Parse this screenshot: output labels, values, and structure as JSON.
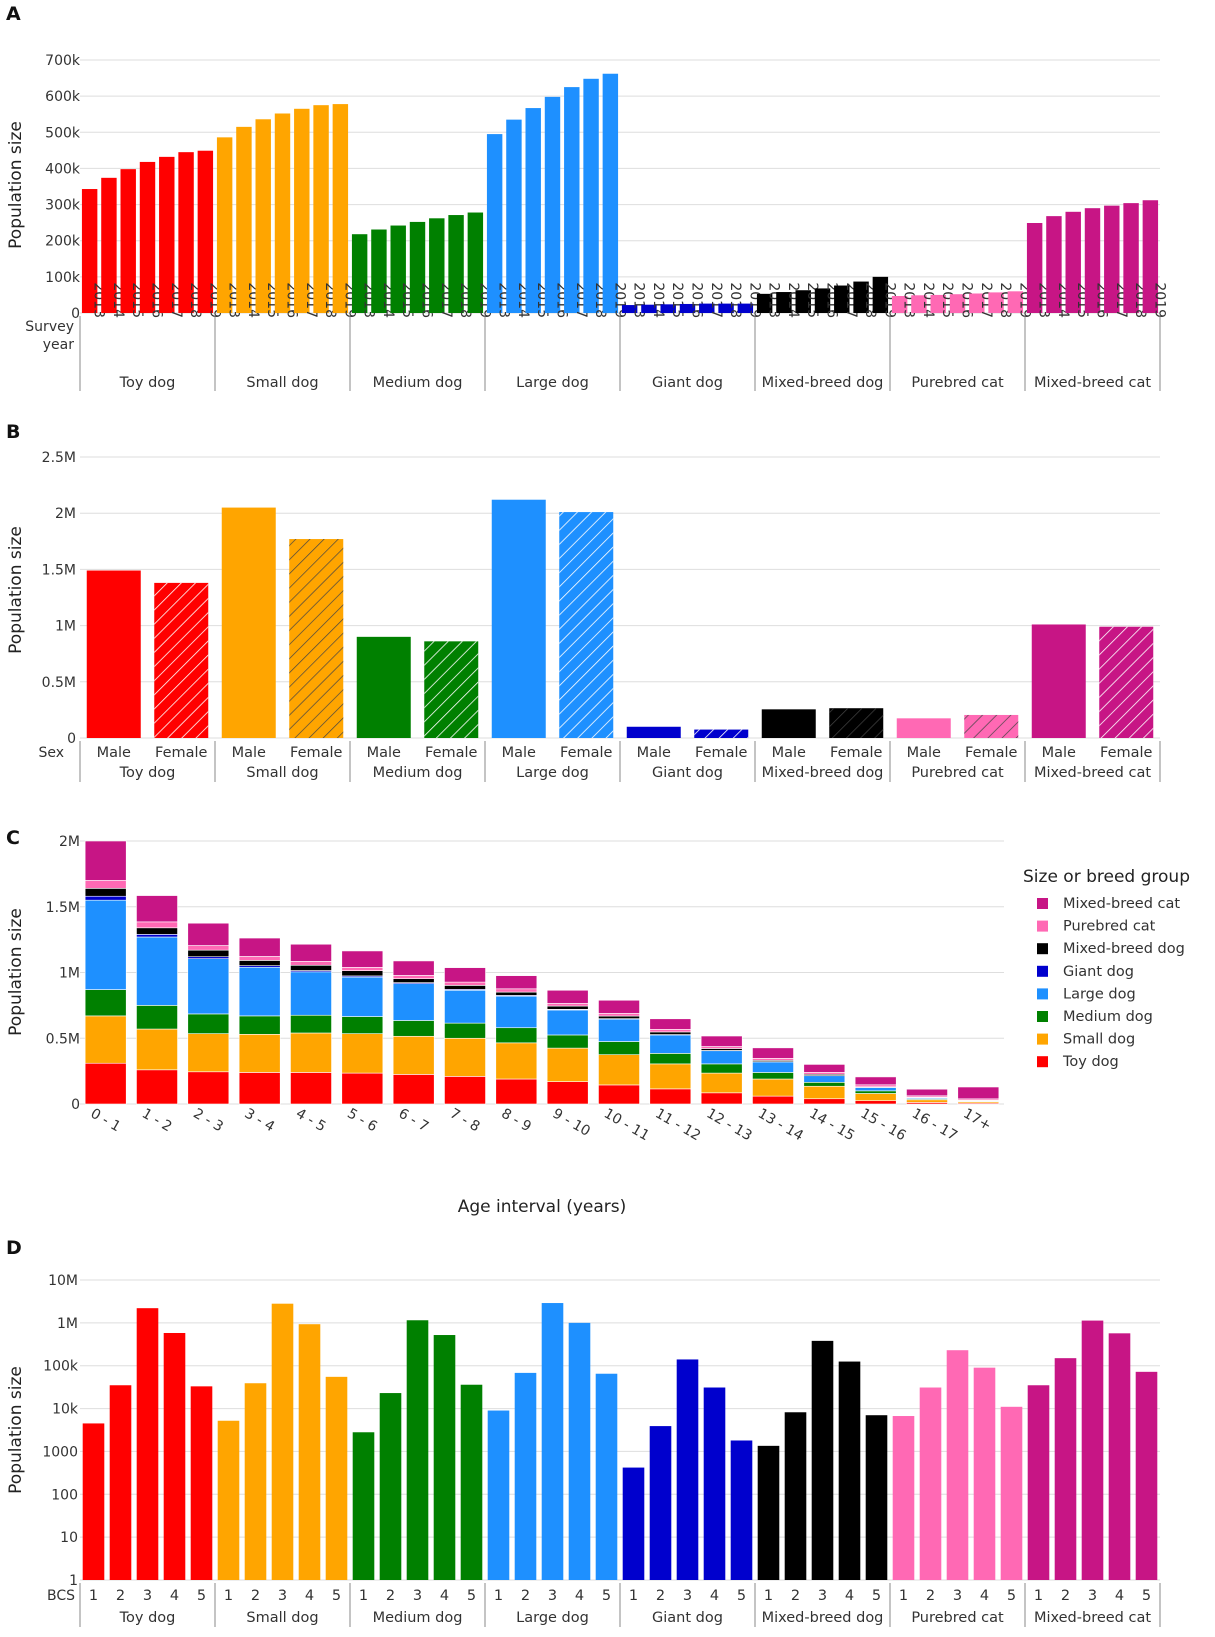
{
  "colors": {
    "Toy dog": "#ff0000",
    "Small dog": "#ffa500",
    "Medium dog": "#008000",
    "Large dog": "#1e90ff",
    "Giant dog": "#0000cd",
    "Mixed-breed dog": "#000000",
    "Purebred cat": "#ff69b4",
    "Mixed-breed cat": "#c71585"
  },
  "chart_data": [
    {
      "panel": "A",
      "type": "bar",
      "ylabel": "Population size",
      "xlabel": "Survey year",
      "yticks": [
        "0",
        "100k",
        "200k",
        "300k",
        "400k",
        "500k",
        "600k",
        "700k"
      ],
      "ylim": [
        0,
        700000
      ],
      "categories": [
        "2013",
        "2014",
        "2015",
        "2016",
        "2017",
        "2018",
        "2019"
      ],
      "series": [
        {
          "name": "Toy dog",
          "values": [
            343000,
            374000,
            398000,
            418000,
            432000,
            445000,
            449000
          ]
        },
        {
          "name": "Small dog",
          "values": [
            486000,
            515000,
            536000,
            552000,
            565000,
            575000,
            578000
          ]
        },
        {
          "name": "Medium dog",
          "values": [
            218000,
            231000,
            242000,
            252000,
            262000,
            271000,
            278000
          ]
        },
        {
          "name": "Large dog",
          "values": [
            495000,
            535000,
            567000,
            598000,
            625000,
            648000,
            662000
          ]
        },
        {
          "name": "Giant dog",
          "values": [
            22000,
            23000,
            24000,
            25000,
            26000,
            26000,
            26000
          ]
        },
        {
          "name": "Mixed-breed dog",
          "values": [
            53000,
            58000,
            63000,
            68000,
            76000,
            87000,
            100000
          ]
        },
        {
          "name": "Purebred cat",
          "values": [
            47000,
            49000,
            50000,
            52000,
            54000,
            57000,
            60000
          ]
        },
        {
          "name": "Mixed-breed cat",
          "values": [
            249000,
            268000,
            280000,
            290000,
            297000,
            304000,
            312000
          ]
        }
      ]
    },
    {
      "panel": "B",
      "type": "bar",
      "ylabel": "Population size",
      "xlabel": "Sex",
      "yticks": [
        "0",
        "0.5M",
        "1M",
        "1.5M",
        "2M",
        "2.5M"
      ],
      "ylim": [
        0,
        2500000
      ],
      "categories": [
        "Male",
        "Female"
      ],
      "female_pattern": "hatched",
      "series": [
        {
          "name": "Toy dog",
          "values": [
            1490000,
            1380000
          ]
        },
        {
          "name": "Small dog",
          "values": [
            2050000,
            1770000
          ]
        },
        {
          "name": "Medium dog",
          "values": [
            900000,
            860000
          ]
        },
        {
          "name": "Large dog",
          "values": [
            2120000,
            2010000
          ]
        },
        {
          "name": "Giant dog",
          "values": [
            100000,
            75000
          ]
        },
        {
          "name": "Mixed-breed dog",
          "values": [
            255000,
            265000
          ]
        },
        {
          "name": "Purebred cat",
          "values": [
            175000,
            205000
          ]
        },
        {
          "name": "Mixed-breed cat",
          "values": [
            1010000,
            990000
          ]
        }
      ]
    },
    {
      "panel": "C",
      "type": "stacked-bar",
      "ylabel": "Population size",
      "xlabel": "Age interval (years)",
      "yticks": [
        "0",
        "0.5M",
        "1M",
        "1.5M",
        "2M"
      ],
      "ylim": [
        0,
        2000000
      ],
      "categories": [
        "0 - 1",
        "1 - 2",
        "2 - 3",
        "3 - 4",
        "4 - 5",
        "5 - 6",
        "6 - 7",
        "7 - 8",
        "8 - 9",
        "9 - 10",
        "10 - 11",
        "11 - 12",
        "12 - 13",
        "13 - 14",
        "14 - 15",
        "15 - 16",
        "16 - 17",
        "17+"
      ],
      "legend_title": "Size or breed group",
      "legend_order": [
        "Mixed-breed cat",
        "Purebred cat",
        "Mixed-breed dog",
        "Giant dog",
        "Large dog",
        "Medium dog",
        "Small dog",
        "Toy dog"
      ],
      "legend_position": "right",
      "series": [
        {
          "name": "Toy dog",
          "values": [
            310000,
            260000,
            245000,
            240000,
            240000,
            235000,
            225000,
            210000,
            190000,
            170000,
            145000,
            115000,
            85000,
            60000,
            40000,
            25000,
            12000,
            8000
          ]
        },
        {
          "name": "Small dog",
          "values": [
            360000,
            310000,
            290000,
            290000,
            300000,
            300000,
            290000,
            290000,
            275000,
            255000,
            230000,
            190000,
            150000,
            130000,
            95000,
            55000,
            20000,
            10000
          ]
        },
        {
          "name": "Medium dog",
          "values": [
            200000,
            180000,
            150000,
            140000,
            135000,
            130000,
            120000,
            115000,
            115000,
            100000,
            100000,
            80000,
            70000,
            50000,
            30000,
            20000,
            7000,
            4000
          ]
        },
        {
          "name": "Large dog",
          "values": [
            680000,
            520000,
            420000,
            370000,
            330000,
            300000,
            280000,
            250000,
            240000,
            190000,
            170000,
            140000,
            100000,
            80000,
            50000,
            25000,
            8000,
            4000
          ]
        },
        {
          "name": "Giant dog",
          "values": [
            30000,
            20000,
            15000,
            12000,
            10000,
            9000,
            8000,
            7000,
            6000,
            5000,
            4000,
            3000,
            2000,
            2000,
            1000,
            1000,
            500,
            300
          ]
        },
        {
          "name": "Mixed-breed dog",
          "values": [
            60000,
            50000,
            50000,
            40000,
            40000,
            40000,
            30000,
            30000,
            25000,
            25000,
            20000,
            20000,
            15000,
            10000,
            10000,
            5000,
            5000,
            3000
          ]
        },
        {
          "name": "Purebred cat",
          "values": [
            60000,
            45000,
            35000,
            30000,
            30000,
            25000,
            25000,
            25000,
            25000,
            20000,
            20000,
            20000,
            15000,
            15000,
            15000,
            15000,
            10000,
            10000
          ]
        },
        {
          "name": "Mixed-breed cat",
          "values": [
            300000,
            200000,
            170000,
            140000,
            130000,
            125000,
            110000,
            110000,
            100000,
            100000,
            100000,
            80000,
            80000,
            80000,
            60000,
            60000,
            50000,
            90000
          ]
        }
      ]
    },
    {
      "panel": "D",
      "type": "bar",
      "yscale": "log",
      "ylabel": "Population size",
      "xlabel": "BCS",
      "yticks": [
        "1",
        "10",
        "100",
        "1000",
        "10k",
        "100k",
        "1M",
        "10M"
      ],
      "ylim": [
        1,
        10000000
      ],
      "categories": [
        "1",
        "2",
        "3",
        "4",
        "5"
      ],
      "series": [
        {
          "name": "Toy dog",
          "values": [
            4500,
            35000,
            2200000,
            580000,
            33000
          ]
        },
        {
          "name": "Small dog",
          "values": [
            5200,
            39000,
            2800000,
            930000,
            55000
          ]
        },
        {
          "name": "Medium dog",
          "values": [
            2800,
            23000,
            1150000,
            520000,
            36000
          ]
        },
        {
          "name": "Large dog",
          "values": [
            9000,
            68000,
            2900000,
            1000000,
            65000
          ]
        },
        {
          "name": "Giant dog",
          "values": [
            420,
            3900,
            140000,
            31000,
            1800
          ]
        },
        {
          "name": "Mixed-breed dog",
          "values": [
            1350,
            8200,
            380000,
            125000,
            7000
          ]
        },
        {
          "name": "Purebred cat",
          "values": [
            6700,
            31000,
            230000,
            90000,
            11000
          ]
        },
        {
          "name": "Mixed-breed cat",
          "values": [
            35000,
            150000,
            1130000,
            570000,
            72000
          ]
        }
      ]
    }
  ]
}
